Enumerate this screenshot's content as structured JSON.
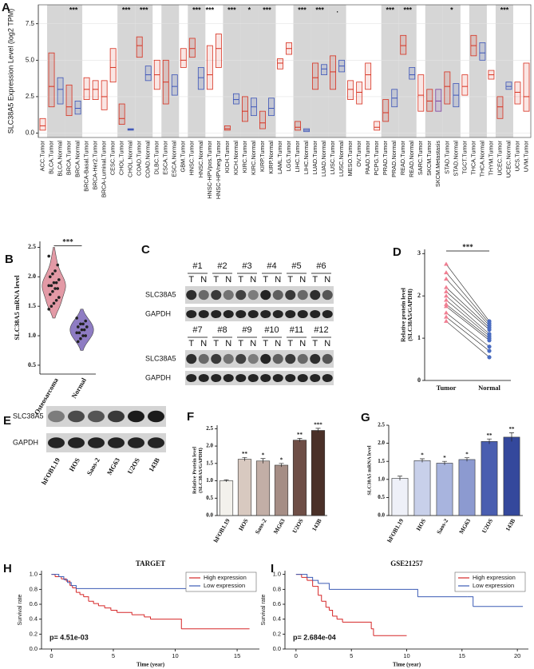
{
  "chart_data": [
    {
      "panel": "A",
      "type": "box",
      "ylabel": "SLC38A5 Expression Level (log2 TPM)",
      "categories": [
        "ACC.Tumor",
        "BLCA.Tumor",
        "BLCA.Normal",
        "BRCA.Tumor",
        "BRCA.Normal",
        "BRCA-Basal.Tumor",
        "BRCA-Her2.Tumor",
        "BRCA-Luminal.Tumor",
        "CESC.Tumor",
        "CHOL.Tumor",
        "CHOL.Normal",
        "COAD.Tumor",
        "COAD.Normal",
        "DLBC.Tumor",
        "ESCA.Tumor",
        "ESCA.Normal",
        "GBM.Tumor",
        "HNSC.Tumor",
        "HNSC.Normal",
        "HNSC-HPVpos.Tumor",
        "HNSC-HPVneg.Tumor",
        "KICH.Tumor",
        "KICH.Normal",
        "KIRC.Tumor",
        "KIRC.Normal",
        "KIRP.Tumor",
        "KIRP.Normal",
        "LAML.Tumor",
        "LGG.Tumor",
        "LIHC.Tumor",
        "LIHC.Normal",
        "LUAD.Tumor",
        "LUAD.Normal",
        "LUSC.Tumor",
        "LUSC.Normal",
        "MESO.Tumor",
        "OV.Tumor",
        "PAAD.Tumor",
        "PCPG.Tumor",
        "PRAD.Tumor",
        "PRAD.Normal",
        "READ.Tumor",
        "READ.Normal",
        "SARC.Tumor",
        "SKCM.Tumor",
        "SKCM.Metastasis",
        "STAD.Tumor",
        "STAD.Normal",
        "TGCT.Tumor",
        "THCA.Tumor",
        "THCA.Normal",
        "THYM.Tumor",
        "UCEC.Tumor",
        "UCEC.Normal",
        "UCS.Tumor",
        "UVM.Tumor"
      ],
      "q1": [
        0.2,
        1.8,
        2.0,
        1.2,
        1.3,
        2.3,
        2.3,
        1.6,
        3.5,
        0.6,
        0.2,
        5.2,
        3.6,
        3.0,
        2.0,
        2.6,
        4.5,
        5.2,
        3.0,
        3.0,
        4.5,
        0.2,
        2.0,
        0.8,
        1.2,
        0.3,
        1.2,
        4.4,
        5.4,
        0.2,
        0.1,
        3.0,
        4.0,
        3.0,
        4.2,
        2.3,
        2.0,
        3.0,
        0.2,
        0.8,
        1.8,
        5.4,
        3.7,
        1.5,
        1.5,
        1.5,
        2.0,
        1.8,
        2.6,
        5.3,
        5.0,
        3.7,
        1.0,
        3.0,
        2.0,
        1.5
      ],
      "median": [
        0.5,
        3.2,
        3.0,
        1.8,
        1.7,
        3.0,
        3.0,
        2.5,
        4.5,
        1.0,
        0.25,
        6.0,
        4.0,
        4.0,
        3.5,
        3.2,
        5.0,
        5.8,
        3.8,
        4.0,
        5.8,
        0.3,
        2.3,
        1.5,
        1.8,
        0.7,
        1.7,
        4.8,
        5.8,
        0.4,
        0.2,
        3.8,
        4.4,
        4.2,
        4.6,
        3.0,
        2.8,
        4.0,
        0.4,
        1.4,
        2.4,
        6.0,
        4.0,
        2.6,
        2.2,
        2.2,
        3.2,
        2.6,
        3.2,
        6.0,
        5.5,
        4.0,
        1.8,
        3.2,
        2.8,
        2.5
      ],
      "q3": [
        1.0,
        5.5,
        3.8,
        3.3,
        2.2,
        3.8,
        3.6,
        3.6,
        5.8,
        2.0,
        0.3,
        6.6,
        4.6,
        5.0,
        5.0,
        4.0,
        5.8,
        6.5,
        4.5,
        6.0,
        6.8,
        0.5,
        2.7,
        2.5,
        2.4,
        1.5,
        2.4,
        5.1,
        6.2,
        0.8,
        0.3,
        4.8,
        4.7,
        5.3,
        5.0,
        3.6,
        3.5,
        4.8,
        0.8,
        2.3,
        3.0,
        6.7,
        4.5,
        4.0,
        3.0,
        3.0,
        4.2,
        3.4,
        4.0,
        6.7,
        6.2,
        4.3,
        2.5,
        3.5,
        3.5,
        4.8
      ],
      "significance": [
        null,
        null,
        null,
        "***",
        null,
        null,
        null,
        null,
        null,
        "***",
        null,
        "***",
        null,
        null,
        null,
        null,
        null,
        "***",
        null,
        "***",
        null,
        "***",
        null,
        "*",
        null,
        "***",
        null,
        null,
        null,
        "***",
        null,
        "***",
        null,
        ".",
        null,
        null,
        null,
        null,
        null,
        "***",
        null,
        "***",
        null,
        null,
        null,
        null,
        "*",
        null,
        null,
        null,
        null,
        null,
        "***",
        null,
        null,
        null
      ],
      "colors": {
        "Tumor": "#d7301f",
        "Normal": "#3d55b8",
        "Metastasis": "#7d3fa3"
      },
      "ylim": [
        -0.3,
        8.8
      ],
      "yticks": [
        {
          "value": 0,
          "label": "0.0"
        },
        2.5,
        {
          "value": 5,
          "label": "5.0"
        },
        7.5
      ],
      "grid": true
    },
    {
      "panel": "B",
      "type": "violin",
      "ylabel": "SLC38A5 mRNA level",
      "categories": [
        "Osteosarcoma",
        "Normal"
      ],
      "values": [
        [
          2.35,
          2.2,
          2.1,
          2.05,
          2.0,
          1.95,
          1.9,
          1.9,
          1.85,
          1.85,
          1.8,
          1.8,
          1.75,
          1.7,
          1.65,
          1.6,
          1.55,
          1.5,
          1.45
        ],
        [
          1.3,
          1.25,
          1.2,
          1.2,
          1.15,
          1.15,
          1.1,
          1.1,
          1.05,
          1.05,
          1.0,
          1.0,
          0.95,
          0.9
        ]
      ],
      "colors": [
        "#e39aa6",
        "#8e7cc3"
      ],
      "significance": "***",
      "ylim": [
        0.35,
        2.6
      ],
      "yticks": [
        {
          "value": 0.5,
          "label": "0.5"
        },
        {
          "value": 1,
          "label": "1.0"
        },
        {
          "value": 1.5,
          "label": "1.5"
        },
        {
          "value": 2,
          "label": "2.0"
        },
        {
          "value": 2.5,
          "label": "2.5"
        }
      ]
    },
    {
      "panel": "D",
      "type": "paired",
      "ylabel": [
        "Relative protein level",
        "(SLC38A5/GAPDH)"
      ],
      "categories": [
        "Tumor",
        "Normal"
      ],
      "values": [
        [
          2.75,
          2.55,
          2.4,
          2.2,
          2.1,
          2.0,
          1.9,
          1.8,
          1.75,
          1.6,
          1.5,
          1.4
        ],
        [
          1.4,
          1.35,
          1.3,
          1.25,
          1.2,
          1.1,
          1.05,
          1.0,
          0.95,
          0.8,
          0.7,
          0.55
        ]
      ],
      "colors": [
        "#f07f92",
        "#4a6cc0"
      ],
      "significance": "***",
      "ylim": [
        0,
        3.1
      ],
      "yticks": [
        0,
        1,
        2,
        3
      ]
    },
    {
      "panel": "F",
      "type": "bar",
      "ylabel": [
        "Relative Protein level",
        "(SLC38A5/GAPDH)"
      ],
      "categories": [
        "hFOB1.19",
        "HOS",
        "Saos-2",
        "MG63",
        "U2OS",
        "143B"
      ],
      "values": [
        1.0,
        1.62,
        1.57,
        1.45,
        2.17,
        2.45
      ],
      "errors": [
        0.03,
        0.05,
        0.07,
        0.05,
        0.05,
        0.06
      ],
      "significance": [
        null,
        "**",
        "*",
        "*",
        "**",
        "***"
      ],
      "colors": [
        "#f3f1ec",
        "#d8c9c0",
        "#c2aea6",
        "#a58d85",
        "#6e4e46",
        "#4a3028"
      ],
      "ylim": [
        0,
        2.6
      ],
      "yticks": [
        {
          "value": 0,
          "label": "0.0"
        },
        {
          "value": 0.5,
          "label": "0.5"
        },
        {
          "value": 1,
          "label": "1.0"
        },
        {
          "value": 1.5,
          "label": "1.5"
        },
        {
          "value": 2,
          "label": "2.0"
        },
        {
          "value": 2.5,
          "label": "2.5"
        }
      ]
    },
    {
      "panel": "G",
      "type": "bar",
      "ylabel": [
        "SLC38A5 mRNA level"
      ],
      "categories": [
        "hFOB1.19",
        "HOS",
        "Saos-2",
        "MG63",
        "U2OS",
        "143B"
      ],
      "values": [
        1.03,
        1.52,
        1.45,
        1.55,
        2.05,
        2.17
      ],
      "errors": [
        0.06,
        0.05,
        0.05,
        0.05,
        0.07,
        0.12
      ],
      "significance": [
        null,
        "*",
        "*",
        "*",
        "**",
        "**"
      ],
      "colors": [
        "#eef0f8",
        "#c8d0ea",
        "#a8b4de",
        "#8c9ad0",
        "#4a5eb0",
        "#34489c"
      ],
      "ylim": [
        0,
        2.5
      ],
      "yticks": [
        {
          "value": 0,
          "label": "0.0"
        },
        {
          "value": 0.5,
          "label": "0.5"
        },
        {
          "value": 1,
          "label": "1.0"
        },
        {
          "value": 1.5,
          "label": "1.5"
        },
        {
          "value": 2,
          "label": "2.0"
        },
        {
          "value": 2.5,
          "label": "2.5"
        }
      ]
    },
    {
      "panel": "H",
      "type": "survival",
      "title": "TARGET",
      "xlabel": "Time (year)",
      "ylabel": "Survival rate",
      "pvalue": "p= 4.51e-03",
      "legend": "upper right",
      "series": [
        {
          "name": "High expression",
          "color": "#d62728",
          "x": [
            0,
            0.3,
            0.8,
            1.2,
            1.5,
            1.7,
            2.0,
            2.3,
            2.6,
            3.0,
            3.4,
            3.8,
            4.3,
            4.8,
            5.3,
            6.5,
            7.5,
            8.0,
            10.5,
            16
          ],
          "values": [
            1.0,
            0.97,
            0.94,
            0.91,
            0.85,
            0.82,
            0.76,
            0.73,
            0.7,
            0.64,
            0.61,
            0.58,
            0.55,
            0.52,
            0.49,
            0.46,
            0.43,
            0.4,
            0.27,
            0.27
          ]
        },
        {
          "name": "Low expression",
          "color": "#3b5bb5",
          "x": [
            0,
            0.6,
            1.0,
            1.3,
            1.6,
            2.0,
            16
          ],
          "values": [
            1.0,
            0.97,
            0.93,
            0.89,
            0.85,
            0.81,
            0.81
          ]
        }
      ],
      "xlim": [
        -0.8,
        16.8
      ],
      "xticks": [
        0,
        5,
        10,
        15
      ],
      "ylim": [
        0,
        1.05
      ],
      "yticks": [
        {
          "value": 0,
          "label": "0.0"
        },
        {
          "value": 0.2,
          "label": "0.2"
        },
        {
          "value": 0.4,
          "label": "0.4"
        },
        {
          "value": 0.6,
          "label": "0.6"
        },
        {
          "value": 0.8,
          "label": "0.8"
        },
        {
          "value": 1,
          "label": "1.0"
        }
      ]
    },
    {
      "panel": "I",
      "type": "survival",
      "title": "GSE21257",
      "xlabel": "Time (year)",
      "ylabel": "Survival rate",
      "pvalue": "p= 2.684e-04",
      "legend": "upper right",
      "series": [
        {
          "name": "High expression",
          "color": "#d62728",
          "x": [
            0,
            0.5,
            1.0,
            1.5,
            2.0,
            2.3,
            2.7,
            3.0,
            3.3,
            3.7,
            4.2,
            6.8,
            7.0,
            10
          ],
          "values": [
            1.0,
            0.96,
            0.92,
            0.84,
            0.72,
            0.64,
            0.56,
            0.52,
            0.44,
            0.4,
            0.36,
            0.27,
            0.18,
            0.18
          ]
        },
        {
          "name": "Low expression",
          "color": "#3b5bb5",
          "x": [
            0,
            1.0,
            1.5,
            2.0,
            3.0,
            10.5,
            11,
            15.5,
            16,
            20.5
          ],
          "values": [
            1.0,
            0.96,
            0.92,
            0.88,
            0.8,
            0.8,
            0.7,
            0.7,
            0.57,
            0.57
          ]
        }
      ],
      "xlim": [
        -1,
        21
      ],
      "xticks": [
        0,
        5,
        10,
        15,
        20
      ],
      "ylim": [
        0,
        1.05
      ],
      "yticks": [
        {
          "value": 0,
          "label": "0.0"
        },
        {
          "value": 0.2,
          "label": "0.2"
        },
        {
          "value": 0.4,
          "label": "0.4"
        },
        {
          "value": 0.6,
          "label": "0.6"
        },
        {
          "value": 0.8,
          "label": "0.8"
        },
        {
          "value": 1,
          "label": "1.0"
        }
      ]
    }
  ],
  "blots": [
    {
      "panel": "C",
      "samples": [
        "#1",
        "#2",
        "#3",
        "#4",
        "#5",
        "#6",
        "#7",
        "#8",
        "#9",
        "#10",
        "#11",
        "#12"
      ],
      "lanes": [
        "T",
        "N"
      ],
      "proteins": [
        "SLC38A5",
        "GAPDH"
      ]
    },
    {
      "panel": "E",
      "samples": [
        "hFOB1.19",
        "HOS",
        "Saos-2",
        "MG63",
        "U2OS",
        "143B"
      ],
      "proteins": [
        "SLC38A5",
        "GAPDH"
      ]
    }
  ]
}
